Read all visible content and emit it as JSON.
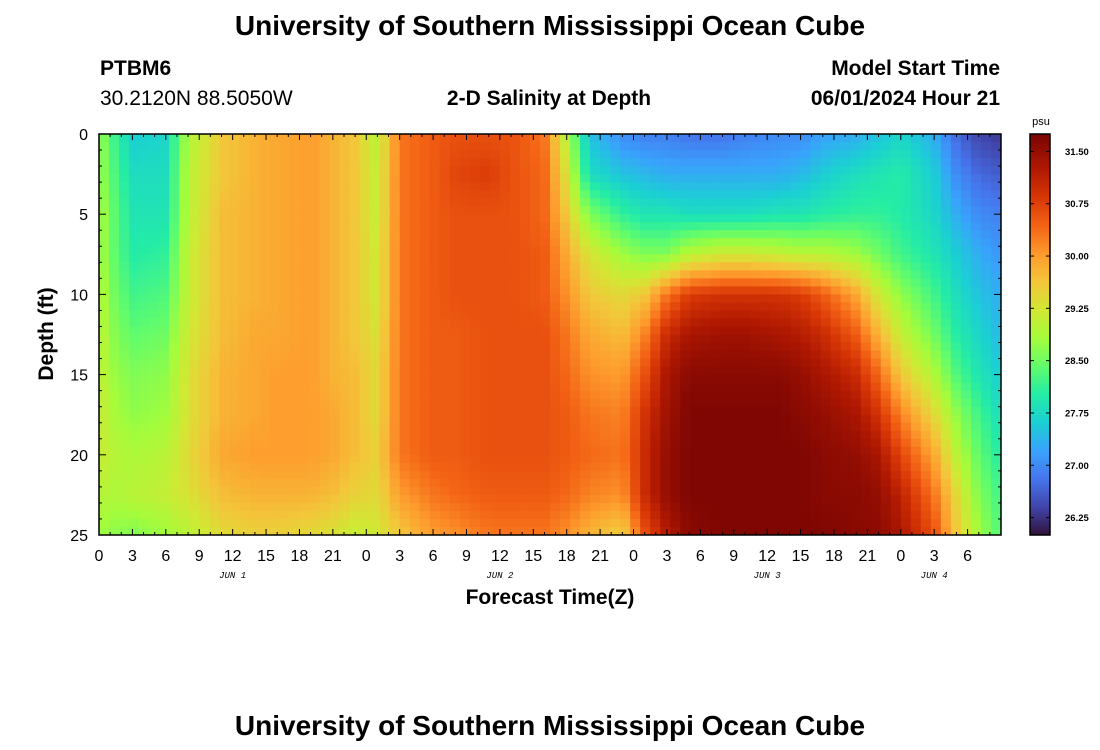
{
  "header": {
    "title": "University of Southern Mississippi Ocean Cube",
    "station_id": "PTBM6",
    "coordinates": "30.2120N  88.5050W",
    "plot_title": "2-D Salinity at Depth",
    "model_start_label": "Model Start Time",
    "model_start_value": "06/01/2024 Hour 21"
  },
  "footer": {
    "title": "University of Southern Mississippi Ocean Cube"
  },
  "chart_data": {
    "type": "heatmap",
    "title": "2-D Salinity at Depth",
    "xlabel": "Forecast Time(Z)",
    "ylabel": "Depth (ft)",
    "x_hours_from_jun1_00z": [
      0,
      81
    ],
    "ylim": [
      0,
      25
    ],
    "y_inverted": true,
    "x_tick_labels": [
      "0",
      "3",
      "6",
      "9",
      "12",
      "15",
      "18",
      "21",
      "0",
      "3",
      "6",
      "9",
      "12",
      "15",
      "18",
      "21",
      "0",
      "3",
      "6",
      "9",
      "12",
      "15",
      "18",
      "21",
      "0",
      "3",
      "6"
    ],
    "y_tick_labels": [
      "0",
      "5",
      "10",
      "15",
      "20",
      "25"
    ],
    "y_tick_values": [
      0,
      5,
      10,
      15,
      20,
      25
    ],
    "day_labels": [
      {
        "label": "JUN 1",
        "hour": 12
      },
      {
        "label": "JUN 2",
        "hour": 36
      },
      {
        "label": "JUN 3",
        "hour": 60
      },
      {
        "label": "JUN 4",
        "hour": 75
      }
    ],
    "colorbar": {
      "unit": "psu",
      "min": 26.0,
      "max": 31.75,
      "tick_labels": [
        "31.50",
        "30.75",
        "30.00",
        "29.25",
        "28.50",
        "27.75",
        "27.00",
        "26.25"
      ],
      "tick_values": [
        31.5,
        30.75,
        30.0,
        29.25,
        28.5,
        27.75,
        27.0,
        26.25
      ]
    },
    "salinity_grid": {
      "x_hours": [
        0,
        1,
        3,
        6,
        8,
        11,
        14,
        16,
        19,
        21,
        23,
        25,
        27,
        30,
        32,
        35,
        37,
        40,
        42,
        44,
        47,
        49,
        51,
        53,
        56,
        58,
        61,
        63,
        65,
        68,
        70,
        72,
        75,
        77,
        79,
        81
      ],
      "depth_ft": [
        0,
        2.5,
        5,
        7.5,
        10,
        12.5,
        15,
        17.5,
        20,
        22.5,
        25
      ],
      "values_psu": [
        [
          28.8,
          28.3,
          27.6,
          27.7,
          28.9,
          29.6,
          29.8,
          29.9,
          30.0,
          29.8,
          29.6,
          29.0,
          30.3,
          30.5,
          30.6,
          30.6,
          30.6,
          30.3,
          29.0,
          27.5,
          27.0,
          26.9,
          26.9,
          26.8,
          26.8,
          26.9,
          27.0,
          27.0,
          27.2,
          27.3,
          27.5,
          27.7,
          27.3,
          26.7,
          26.4,
          26.3
        ],
        [
          28.8,
          28.4,
          27.8,
          27.8,
          29.0,
          29.6,
          29.8,
          29.9,
          30.0,
          29.8,
          29.6,
          29.1,
          30.3,
          30.5,
          30.7,
          30.8,
          30.6,
          30.4,
          29.3,
          27.8,
          27.5,
          27.4,
          27.3,
          27.3,
          27.3,
          27.3,
          27.3,
          27.4,
          27.6,
          27.8,
          27.9,
          28.0,
          27.6,
          27.0,
          26.7,
          26.6
        ],
        [
          28.9,
          28.5,
          27.9,
          27.9,
          29.0,
          29.7,
          29.8,
          29.9,
          30.0,
          29.8,
          29.6,
          29.1,
          30.3,
          30.5,
          30.6,
          30.6,
          30.6,
          30.4,
          29.6,
          28.6,
          28.1,
          27.9,
          27.9,
          27.8,
          27.8,
          27.8,
          27.9,
          27.9,
          28.0,
          28.1,
          28.1,
          28.0,
          27.7,
          27.3,
          27.0,
          26.9
        ],
        [
          28.9,
          28.5,
          28.0,
          28.1,
          29.1,
          29.7,
          29.8,
          29.9,
          30.0,
          29.8,
          29.6,
          29.2,
          30.3,
          30.5,
          30.6,
          30.6,
          30.6,
          30.5,
          29.9,
          29.3,
          28.8,
          28.6,
          28.6,
          29.0,
          29.2,
          29.2,
          29.1,
          29.0,
          29.0,
          28.8,
          28.5,
          28.2,
          27.9,
          27.6,
          27.3,
          27.1
        ],
        [
          29.0,
          28.6,
          28.2,
          28.3,
          29.1,
          29.7,
          29.8,
          29.9,
          30.0,
          29.8,
          29.6,
          29.2,
          30.3,
          30.5,
          30.6,
          30.6,
          30.6,
          30.5,
          30.1,
          29.6,
          29.4,
          29.6,
          30.3,
          30.8,
          30.9,
          30.9,
          30.9,
          30.8,
          30.5,
          29.9,
          29.2,
          28.7,
          28.2,
          27.8,
          27.5,
          27.3
        ],
        [
          29.1,
          28.7,
          28.4,
          28.5,
          29.2,
          29.7,
          29.9,
          29.9,
          30.0,
          29.8,
          29.6,
          29.3,
          30.3,
          30.5,
          30.5,
          30.6,
          30.6,
          30.6,
          30.3,
          29.9,
          29.7,
          30.2,
          31.0,
          31.3,
          31.4,
          31.4,
          31.3,
          31.2,
          31.0,
          30.5,
          29.8,
          29.1,
          28.5,
          28.0,
          27.7,
          27.4
        ],
        [
          29.1,
          28.8,
          28.6,
          28.7,
          29.3,
          29.8,
          29.9,
          30.0,
          30.0,
          29.8,
          29.7,
          29.4,
          30.3,
          30.5,
          30.5,
          30.6,
          30.6,
          30.6,
          30.4,
          30.1,
          30.0,
          30.6,
          31.3,
          31.6,
          31.6,
          31.6,
          31.6,
          31.5,
          31.3,
          31.0,
          30.4,
          29.6,
          28.9,
          28.3,
          27.9,
          27.6
        ],
        [
          29.2,
          28.9,
          28.7,
          28.8,
          29.3,
          29.8,
          29.9,
          30.0,
          30.0,
          29.9,
          29.7,
          29.4,
          30.3,
          30.5,
          30.5,
          30.6,
          30.6,
          30.6,
          30.5,
          30.3,
          30.2,
          30.9,
          31.4,
          31.7,
          31.7,
          31.7,
          31.7,
          31.6,
          31.5,
          31.3,
          30.9,
          30.2,
          29.4,
          28.7,
          28.2,
          27.8
        ],
        [
          29.2,
          29.0,
          28.9,
          29.0,
          29.4,
          29.9,
          30.0,
          30.0,
          30.0,
          29.9,
          29.7,
          29.5,
          30.3,
          30.5,
          30.5,
          30.6,
          30.6,
          30.6,
          30.5,
          30.4,
          30.3,
          31.0,
          31.5,
          31.7,
          31.7,
          31.7,
          31.7,
          31.7,
          31.6,
          31.5,
          31.3,
          30.7,
          29.9,
          29.0,
          28.4,
          28.0
        ],
        [
          29.0,
          28.9,
          29.0,
          29.1,
          29.3,
          29.7,
          29.8,
          29.8,
          29.8,
          29.7,
          29.5,
          29.4,
          30.0,
          30.3,
          30.4,
          30.5,
          30.5,
          30.5,
          30.4,
          30.2,
          30.1,
          31.0,
          31.5,
          31.7,
          31.7,
          31.7,
          31.7,
          31.7,
          31.6,
          31.6,
          31.5,
          31.1,
          30.3,
          29.4,
          28.6,
          28.2
        ],
        [
          28.8,
          28.7,
          28.6,
          28.8,
          29.0,
          29.4,
          29.5,
          29.5,
          29.4,
          29.3,
          29.1,
          29.2,
          29.6,
          30.0,
          30.1,
          30.3,
          30.3,
          30.3,
          30.1,
          29.8,
          29.5,
          30.6,
          31.2,
          31.6,
          31.7,
          31.7,
          31.7,
          31.7,
          31.7,
          31.6,
          31.6,
          31.3,
          30.6,
          29.6,
          28.8,
          28.3
        ]
      ]
    }
  }
}
